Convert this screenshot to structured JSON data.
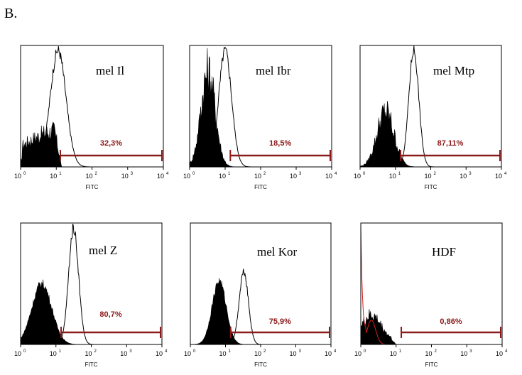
{
  "figure": {
    "label": "B."
  },
  "colors": {
    "filled": "#000000",
    "outline": "#000000",
    "gate": "#8b1a1a",
    "gate_text": "#8b1a1a",
    "hdf_outline": "#d02020",
    "axis": "#000000"
  },
  "chart_data": [
    {
      "type": "area",
      "title": "mel Il",
      "xlabel": "FITC",
      "x_scale": "log",
      "xlim": [
        1,
        10000
      ],
      "x_ticks": [
        {
          "base": "10",
          "exp": "0"
        },
        {
          "base": "10",
          "exp": "1"
        },
        {
          "base": "10",
          "exp": "2"
        },
        {
          "base": "10",
          "exp": "3"
        },
        {
          "base": "10",
          "exp": "4"
        }
      ],
      "filled": {
        "center_log": 0.35,
        "width_log": 0.55,
        "height": 0.36,
        "shape": "flat-noisy"
      },
      "outline": {
        "center_log": 1.05,
        "width_log": 0.22,
        "height": 0.97
      },
      "gate": {
        "start": 13,
        "end": 10000,
        "label": "32,3%"
      }
    },
    {
      "type": "area",
      "title": "mel Ibr",
      "xlabel": "FITC",
      "x_scale": "log",
      "xlim": [
        1,
        10000
      ],
      "x_ticks": [
        {
          "base": "10",
          "exp": "0"
        },
        {
          "base": "10",
          "exp": "1"
        },
        {
          "base": "10",
          "exp": "2"
        },
        {
          "base": "10",
          "exp": "3"
        },
        {
          "base": "10",
          "exp": "4"
        }
      ],
      "filled": {
        "center_log": 0.52,
        "width_log": 0.2,
        "height": 0.8,
        "shape": "noisy"
      },
      "outline": {
        "center_log": 1.0,
        "width_log": 0.18,
        "height": 0.97
      },
      "gate": {
        "start": 14,
        "end": 10000,
        "label": "18,5%"
      }
    },
    {
      "type": "area",
      "title": "mel Mtp",
      "xlabel": "FITC",
      "x_scale": "log",
      "xlim": [
        1,
        10000
      ],
      "x_ticks": [
        {
          "base": "10",
          "exp": "0"
        },
        {
          "base": "10",
          "exp": "1"
        },
        {
          "base": "10",
          "exp": "2"
        },
        {
          "base": "10",
          "exp": "3"
        },
        {
          "base": "10",
          "exp": "4"
        }
      ],
      "filled": {
        "center_log": 0.72,
        "width_log": 0.24,
        "height": 0.46,
        "shape": "noisy"
      },
      "outline": {
        "center_log": 1.52,
        "width_log": 0.14,
        "height": 0.97
      },
      "gate": {
        "start": 14,
        "end": 10000,
        "label": "87,11%"
      }
    },
    {
      "type": "area",
      "title": "mel Z",
      "xlabel": "FITC",
      "x_scale": "log",
      "xlim": [
        1,
        10000
      ],
      "x_ticks": [
        {
          "base": "10",
          "exp": "0"
        },
        {
          "base": "10",
          "exp": "1"
        },
        {
          "base": "10",
          "exp": "2"
        },
        {
          "base": "10",
          "exp": "3"
        },
        {
          "base": "10",
          "exp": "4"
        }
      ],
      "filled": {
        "center_log": 0.6,
        "width_log": 0.28,
        "height": 0.5,
        "shape": "smooth"
      },
      "outline": {
        "center_log": 1.5,
        "width_log": 0.14,
        "height": 0.97
      },
      "gate": {
        "start": 14,
        "end": 10000,
        "label": "80,7%"
      }
    },
    {
      "type": "area",
      "title": "mel Kor",
      "xlabel": "FITC",
      "x_scale": "log",
      "xlim": [
        1,
        10000
      ],
      "x_ticks": [
        {
          "base": "10",
          "exp": "0"
        },
        {
          "base": "10",
          "exp": "1"
        },
        {
          "base": "10",
          "exp": "2"
        },
        {
          "base": "10",
          "exp": "3"
        },
        {
          "base": "10",
          "exp": "4"
        }
      ],
      "filled": {
        "center_log": 0.82,
        "width_log": 0.2,
        "height": 0.52,
        "shape": "smooth"
      },
      "outline": {
        "center_log": 1.52,
        "width_log": 0.13,
        "height": 0.61
      },
      "gate": {
        "start": 14,
        "end": 10000,
        "label": "75,9%"
      }
    },
    {
      "type": "area",
      "title": "HDF",
      "xlabel": "FITC",
      "x_scale": "log",
      "xlim": [
        1,
        10000
      ],
      "x_ticks": [
        {
          "base": "10",
          "exp": "0"
        },
        {
          "base": "10",
          "exp": "1"
        },
        {
          "base": "10",
          "exp": "2"
        },
        {
          "base": "10",
          "exp": "3"
        },
        {
          "base": "10",
          "exp": "4"
        }
      ],
      "filled": {
        "center_log": 0.3,
        "width_log": 0.28,
        "height": 0.22,
        "shape": "hdf"
      },
      "outline": {
        "center_log": 0.02,
        "width_log": 0.04,
        "height": 0.99,
        "color_key": "hdf_outline"
      },
      "gate": {
        "start": 14,
        "end": 10000,
        "label": "0,86%"
      }
    }
  ]
}
